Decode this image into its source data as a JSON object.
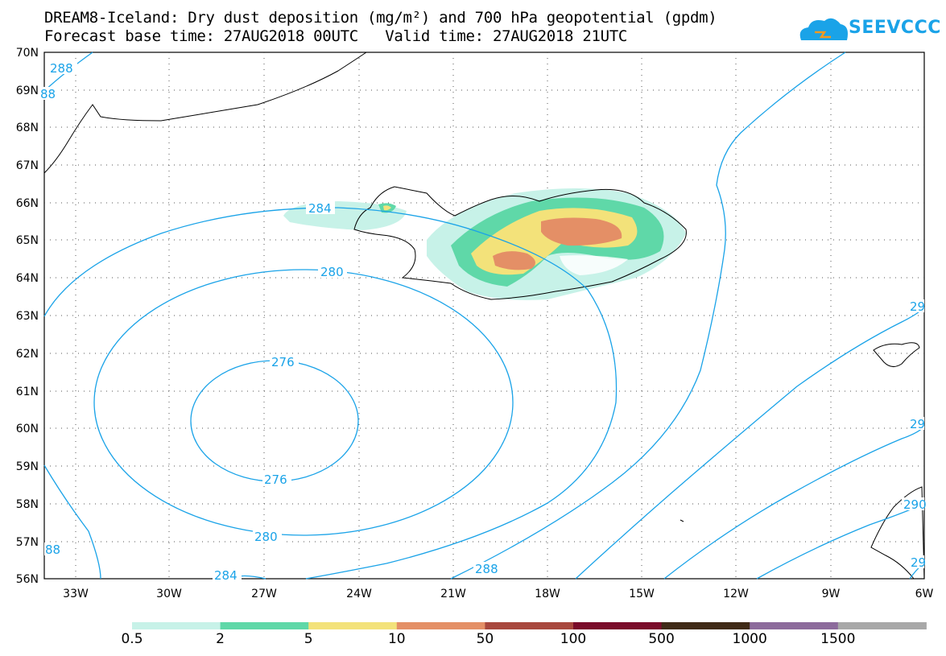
{
  "title_line1": "DREAM8-Iceland: Dry dust deposition (mg/m²) and 700 hPa geopotential (gpdm)",
  "title_line2": "Forecast base time: 27AUG2018 00UTC   Valid time: 27AUG2018 21UTC",
  "logo_text": "SEEVCCC",
  "lat_labels": [
    "70N",
    "69N",
    "68N",
    "67N",
    "66N",
    "65N",
    "64N",
    "63N",
    "62N",
    "61N",
    "60N",
    "59N",
    "58N",
    "57N",
    "56N"
  ],
  "lon_labels": [
    "33W",
    "30W",
    "27W",
    "24W",
    "21W",
    "18W",
    "15W",
    "12W",
    "9W",
    "6W"
  ],
  "contour_labels": [
    "288",
    "88",
    "284",
    "280",
    "276",
    "276",
    "280",
    "284",
    "288",
    "88",
    "29",
    "29",
    "290",
    "29"
  ],
  "legend": {
    "labels": [
      "0.5",
      "2",
      "5",
      "10",
      "50",
      "100",
      "500",
      "1000",
      "1500"
    ],
    "colors": [
      "#c7f2e8",
      "#5fd8a8",
      "#f3e27a",
      "#e48f66",
      "#a8473d",
      "#7a0b2a",
      "#3f2a17",
      "#8c6b9c",
      "#a8a8a8"
    ]
  },
  "colors": {
    "contour": "#1aa3e8",
    "coast": "#000000"
  }
}
